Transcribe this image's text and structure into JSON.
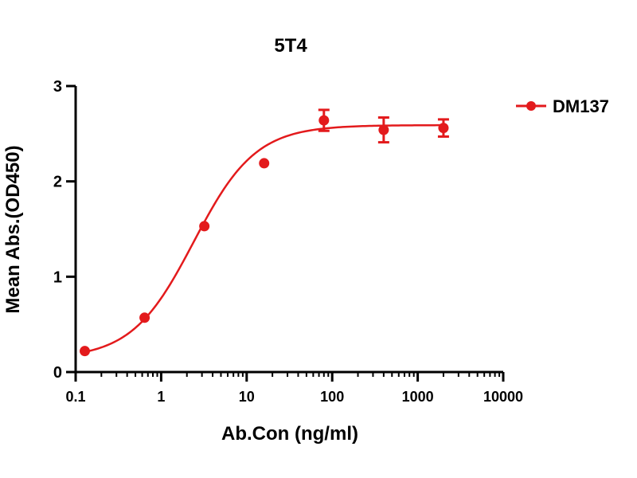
{
  "chart_data": {
    "type": "scatter",
    "title": "5T4",
    "xlabel": "Ab.Con (ng/ml)",
    "ylabel": "Mean Abs.(OD450)",
    "x_scale": "log",
    "xlim": [
      0.1,
      10000
    ],
    "ylim": [
      0,
      3
    ],
    "x_ticks": [
      0.1,
      1,
      10,
      100,
      1000,
      10000
    ],
    "x_tick_labels": [
      "0.1",
      "1",
      "10",
      "100",
      "1000",
      "10000"
    ],
    "y_ticks": [
      0,
      1,
      2,
      3
    ],
    "y_tick_labels": [
      "0",
      "1",
      "2",
      "3"
    ],
    "grid": false,
    "legend_position": "top-right",
    "series": [
      {
        "name": "DM137",
        "color": "#e31a1c",
        "marker": "circle",
        "fit": "4PL",
        "x": [
          0.128,
          0.64,
          3.2,
          16,
          80,
          400,
          2000
        ],
        "y": [
          0.22,
          0.57,
          1.53,
          2.19,
          2.64,
          2.54,
          2.56
        ],
        "error": [
          0.0,
          0.0,
          0.0,
          0.0,
          0.11,
          0.13,
          0.09
        ]
      }
    ]
  }
}
